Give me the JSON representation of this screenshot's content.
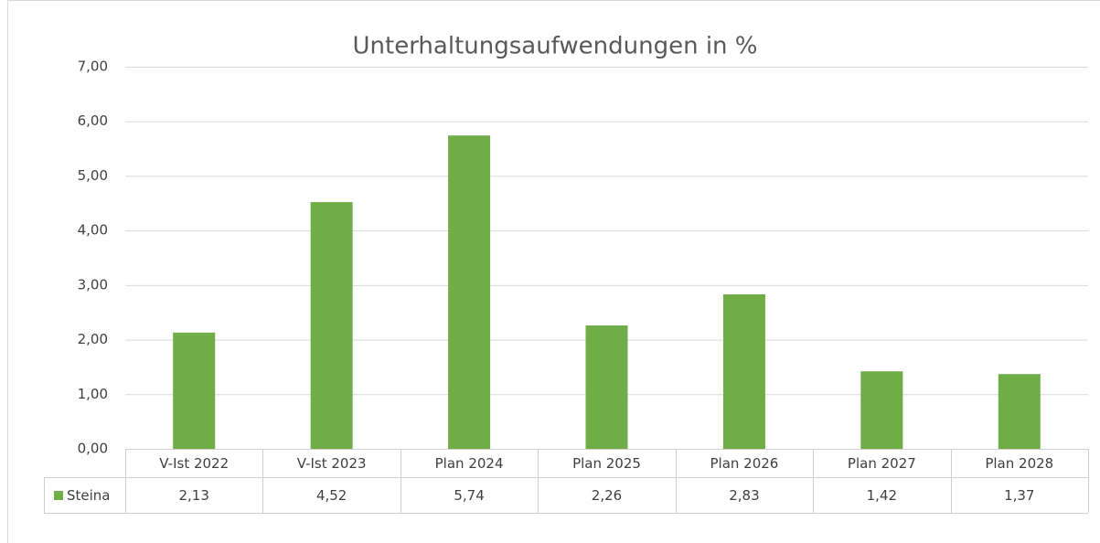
{
  "chart_data": {
    "type": "bar",
    "title": "Unterhaltungsaufwendungen in %",
    "categories": [
      "V-Ist 2022",
      "V-Ist 2023",
      "Plan 2024",
      "Plan 2025",
      "Plan 2026",
      "Plan 2027",
      "Plan 2028"
    ],
    "series": [
      {
        "name": "Steina",
        "color": "#70ad47",
        "values": [
          2.13,
          4.52,
          5.74,
          2.26,
          2.83,
          1.42,
          1.37
        ],
        "value_labels": [
          "2,13",
          "4,52",
          "5,74",
          "2,26",
          "2,83",
          "1,42",
          "1,37"
        ]
      }
    ],
    "ylim": [
      0,
      7
    ],
    "yticks": [
      {
        "value": 0,
        "label": "0,00"
      },
      {
        "value": 1,
        "label": "1,00"
      },
      {
        "value": 2,
        "label": "2,00"
      },
      {
        "value": 3,
        "label": "3,00"
      },
      {
        "value": 4,
        "label": "4,00"
      },
      {
        "value": 5,
        "label": "5,00"
      },
      {
        "value": 6,
        "label": "6,00"
      },
      {
        "value": 7,
        "label": "7,00"
      }
    ],
    "grid": true,
    "legend": "data-table"
  }
}
